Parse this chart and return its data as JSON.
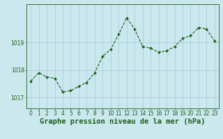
{
  "x": [
    0,
    1,
    2,
    3,
    4,
    5,
    6,
    7,
    8,
    9,
    10,
    11,
    12,
    13,
    14,
    15,
    16,
    17,
    18,
    19,
    20,
    21,
    22,
    23
  ],
  "y": [
    1017.6,
    1017.9,
    1017.75,
    1017.7,
    1017.2,
    1017.25,
    1017.4,
    1017.55,
    1017.9,
    1018.5,
    1018.75,
    1019.3,
    1019.9,
    1019.5,
    1018.85,
    1018.8,
    1018.65,
    1018.7,
    1018.85,
    1019.15,
    1019.25,
    1019.55,
    1019.5,
    1019.05
  ],
  "line_color": "#1a5e1a",
  "marker_color": "#1a5e1a",
  "bg_color": "#cce8ef",
  "grid_color": "#a0c8d8",
  "axis_color": "#1a5e1a",
  "tick_color": "#1a5e1a",
  "title": "Graphe pression niveau de la mer (hPa)",
  "yticks": [
    1017,
    1018,
    1019
  ],
  "ylim": [
    1016.6,
    1020.4
  ],
  "xlim": [
    -0.5,
    23.5
  ],
  "title_fontsize": 7.5,
  "tick_fontsize": 5.5
}
